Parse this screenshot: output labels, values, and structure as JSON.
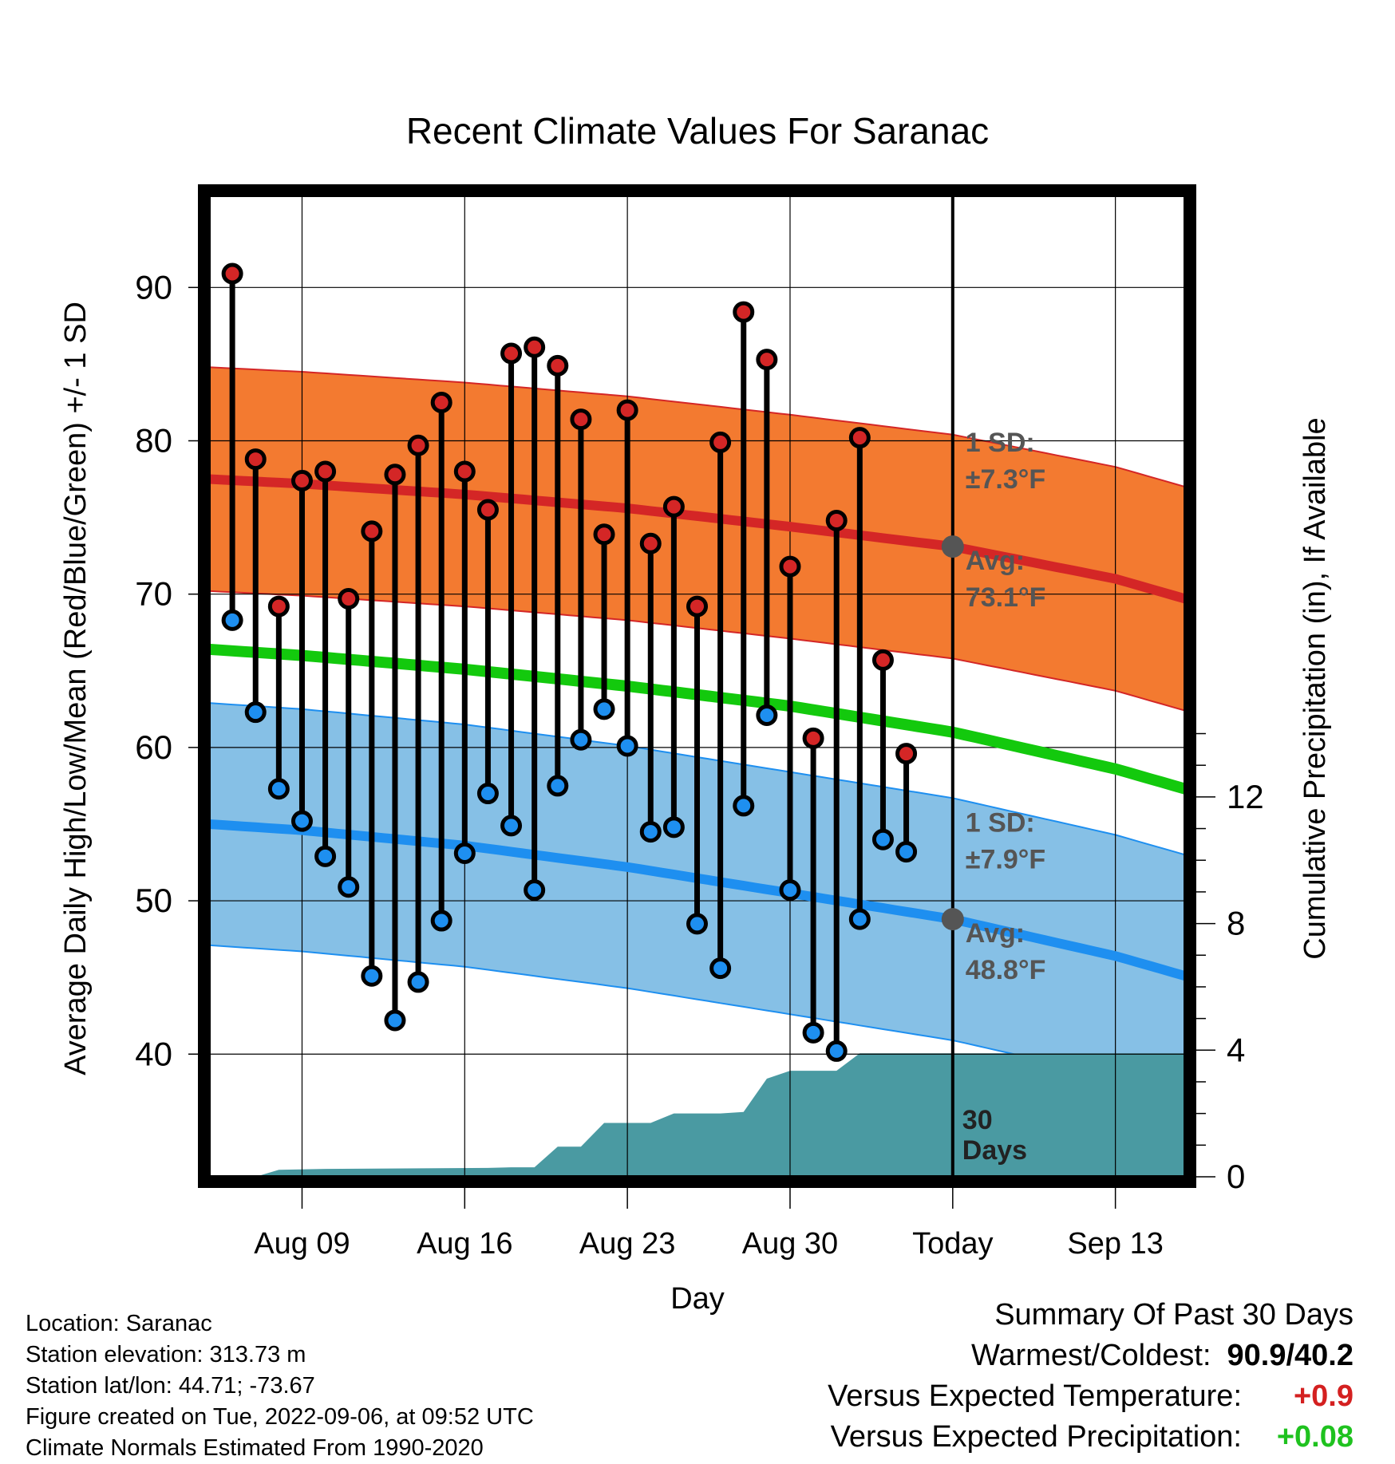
{
  "chart_data": {
    "type": "line",
    "title": "Recent Climate Values For Saranac",
    "xlabel": "Day",
    "ylabel": "Average Daily High/Low/Mean (Red/Blue/Green) +/- 1 SD",
    "y2label": "Cumulative Precipitation (in), If Available",
    "xlim": [
      "2022-08-05",
      "2022-09-16"
    ],
    "ylim": [
      32,
      96
    ],
    "y2lim": [
      0,
      31
    ],
    "x_ticks": [
      {
        "date": "2022-08-09",
        "label": "Aug 09"
      },
      {
        "date": "2022-08-16",
        "label": "Aug 16"
      },
      {
        "date": "2022-08-23",
        "label": "Aug 23"
      },
      {
        "date": "2022-08-30",
        "label": "Aug 30"
      },
      {
        "date": "2022-09-06",
        "label": "Today"
      },
      {
        "date": "2022-09-13",
        "label": "Sep 13"
      }
    ],
    "y_ticks": [
      40,
      50,
      60,
      70,
      80,
      90
    ],
    "y2_ticks": [
      0,
      4,
      8,
      12
    ],
    "today": "2022-09-06",
    "today_label": "30\nDays",
    "grid": true,
    "daily": [
      {
        "date": "2022-08-06",
        "high": 90.9,
        "low": 68.3
      },
      {
        "date": "2022-08-07",
        "high": 78.8,
        "low": 62.3
      },
      {
        "date": "2022-08-08",
        "high": 69.2,
        "low": 57.3
      },
      {
        "date": "2022-08-09",
        "high": 77.4,
        "low": 55.2
      },
      {
        "date": "2022-08-10",
        "high": 78.0,
        "low": 52.9
      },
      {
        "date": "2022-08-11",
        "high": 69.7,
        "low": 50.9
      },
      {
        "date": "2022-08-12",
        "high": 74.1,
        "low": 45.1
      },
      {
        "date": "2022-08-13",
        "high": 77.8,
        "low": 42.2
      },
      {
        "date": "2022-08-14",
        "high": 79.7,
        "low": 44.7
      },
      {
        "date": "2022-08-15",
        "high": 82.5,
        "low": 48.7
      },
      {
        "date": "2022-08-16",
        "high": 78.0,
        "low": 53.1
      },
      {
        "date": "2022-08-17",
        "high": 75.5,
        "low": 57.0
      },
      {
        "date": "2022-08-18",
        "high": 85.7,
        "low": 54.9
      },
      {
        "date": "2022-08-19",
        "high": 86.1,
        "low": 50.7
      },
      {
        "date": "2022-08-20",
        "high": 84.9,
        "low": 57.5
      },
      {
        "date": "2022-08-21",
        "high": 81.4,
        "low": 60.5
      },
      {
        "date": "2022-08-22",
        "high": 73.9,
        "low": 62.5
      },
      {
        "date": "2022-08-23",
        "high": 82.0,
        "low": 60.1
      },
      {
        "date": "2022-08-24",
        "high": 73.3,
        "low": 54.5
      },
      {
        "date": "2022-08-25",
        "high": 75.7,
        "low": 54.8
      },
      {
        "date": "2022-08-26",
        "high": 69.2,
        "low": 48.5
      },
      {
        "date": "2022-08-27",
        "high": 79.9,
        "low": 45.6
      },
      {
        "date": "2022-08-28",
        "high": 88.4,
        "low": 56.2
      },
      {
        "date": "2022-08-29",
        "high": 85.3,
        "low": 62.1
      },
      {
        "date": "2022-08-30",
        "high": 71.8,
        "low": 50.7
      },
      {
        "date": "2022-08-31",
        "high": 60.6,
        "low": 41.4
      },
      {
        "date": "2022-09-01",
        "high": 74.8,
        "low": 40.2
      },
      {
        "date": "2022-09-02",
        "high": 80.2,
        "low": 48.8
      },
      {
        "date": "2022-09-03",
        "high": 65.7,
        "low": 54.0
      },
      {
        "date": "2022-09-04",
        "high": 59.6,
        "low": 53.2
      }
    ],
    "normals": {
      "dates": [
        "2022-08-05",
        "2022-08-09",
        "2022-08-16",
        "2022-08-23",
        "2022-08-30",
        "2022-09-06",
        "2022-09-13",
        "2022-09-16"
      ],
      "avg_high": [
        77.5,
        77.2,
        76.5,
        75.6,
        74.4,
        73.1,
        71.0,
        69.7
      ],
      "avg_mean": [
        66.4,
        66.0,
        65.1,
        64.0,
        62.7,
        61.0,
        58.6,
        57.3
      ],
      "avg_low": [
        55.0,
        54.6,
        53.6,
        52.2,
        50.5,
        48.8,
        46.4,
        45.1
      ],
      "high_sd": 7.3,
      "low_sd": 7.9
    },
    "precip": {
      "dates": [
        "2022-08-05",
        "2022-08-06",
        "2022-08-07",
        "2022-08-08",
        "2022-08-10",
        "2022-08-17",
        "2022-08-18",
        "2022-08-19",
        "2022-08-20",
        "2022-08-21",
        "2022-08-22",
        "2022-08-23",
        "2022-08-24",
        "2022-08-25",
        "2022-08-26",
        "2022-08-27",
        "2022-08-28",
        "2022-08-29",
        "2022-08-30",
        "2022-08-31",
        "2022-09-01",
        "2022-09-02",
        "2022-09-03",
        "2022-09-16"
      ],
      "values": [
        0,
        0,
        0,
        0.22,
        0.25,
        0.28,
        0.3,
        0.3,
        0.95,
        0.95,
        1.7,
        1.7,
        1.7,
        2.0,
        2.0,
        2.0,
        2.05,
        3.1,
        3.35,
        3.35,
        3.35,
        3.9,
        3.9,
        3.9
      ]
    },
    "annotations": {
      "high_sd_label": "1 SD:",
      "high_sd_value": "±7.3°F",
      "high_avg_label": "Avg:",
      "high_avg_value": "73.1°F",
      "low_sd_label": "1 SD:",
      "low_sd_value": "±7.9°F",
      "low_avg_label": "Avg:",
      "low_avg_value": "48.8°F",
      "avg_high_today": 73.1,
      "avg_low_today": 48.8
    },
    "colors": {
      "high_band": "#f37a30",
      "high_line": "#d42626",
      "mean_line": "#13c90d",
      "low_band": "#86c0e6",
      "low_line": "#1e8ff0",
      "precip": "#4a9aa2",
      "high_marker": "#d42626",
      "low_marker": "#1e8ff0",
      "annotation_text": "#555555",
      "avg_marker": "#555555"
    }
  },
  "footer": {
    "location": "Location: Saranac",
    "elevation": "Station elevation: 313.73 m",
    "latlon": "Station lat/lon: 44.71; -73.67",
    "created": "Figure created on Tue, 2022-09-06, at 09:52 UTC",
    "normals": "Climate Normals Estimated From 1990-2020"
  },
  "summary": {
    "title": "Summary Of Past 30 Days",
    "warmest_label": "Warmest/Coldest:",
    "warmest_value": "90.9/40.2",
    "temp_label": "Versus Expected Temperature:",
    "temp_value": "+0.9",
    "precip_label": "Versus Expected Precipitation:",
    "precip_value": "+0.08"
  }
}
